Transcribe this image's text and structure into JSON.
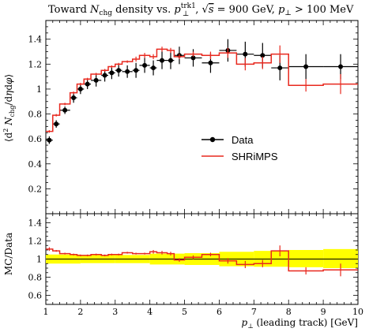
{
  "chart_data": [
    {
      "type": "line",
      "title": "Toward N_chg density vs. p_⊥^trk1, √s = 900 GeV, p_⊥ > 100 MeV",
      "ylabel": "⟨d² N_chg / dη dφ⟩",
      "xlabel": "",
      "xlim": [
        1,
        10
      ],
      "ylim": [
        0,
        1.55
      ],
      "yticks": [
        0.2,
        0.4,
        0.6,
        0.8,
        1.0,
        1.2,
        1.4
      ],
      "ytick_labels": [
        "0.2",
        "0.4",
        "0.6",
        "0.8",
        "1",
        "1.2",
        "1.4"
      ],
      "legend_position": "right",
      "series": [
        {
          "name": "Data",
          "kind": "points",
          "color": "#000000",
          "points": [
            {
              "x": 1.1,
              "xlo": 1.0,
              "xhi": 1.2,
              "y": 0.59,
              "err": 0.03
            },
            {
              "x": 1.3,
              "xlo": 1.2,
              "xhi": 1.4,
              "y": 0.72,
              "err": 0.03
            },
            {
              "x": 1.55,
              "xlo": 1.4,
              "xhi": 1.7,
              "y": 0.83,
              "err": 0.03
            },
            {
              "x": 1.8,
              "xlo": 1.7,
              "xhi": 1.9,
              "y": 0.93,
              "err": 0.04
            },
            {
              "x": 2.0,
              "xlo": 1.9,
              "xhi": 2.1,
              "y": 1.0,
              "err": 0.04
            },
            {
              "x": 2.2,
              "xlo": 2.1,
              "xhi": 2.3,
              "y": 1.04,
              "err": 0.04
            },
            {
              "x": 2.45,
              "xlo": 2.3,
              "xhi": 2.6,
              "y": 1.07,
              "err": 0.05
            },
            {
              "x": 2.7,
              "xlo": 2.6,
              "xhi": 2.8,
              "y": 1.11,
              "err": 0.05
            },
            {
              "x": 2.9,
              "xlo": 2.8,
              "xhi": 3.0,
              "y": 1.13,
              "err": 0.05
            },
            {
              "x": 3.1,
              "xlo": 3.0,
              "xhi": 3.2,
              "y": 1.15,
              "err": 0.05
            },
            {
              "x": 3.35,
              "xlo": 3.2,
              "xhi": 3.5,
              "y": 1.14,
              "err": 0.05
            },
            {
              "x": 3.6,
              "xlo": 3.5,
              "xhi": 3.7,
              "y": 1.15,
              "err": 0.06
            },
            {
              "x": 3.85,
              "xlo": 3.7,
              "xhi": 4.0,
              "y": 1.19,
              "err": 0.06
            },
            {
              "x": 4.1,
              "xlo": 4.0,
              "xhi": 4.2,
              "y": 1.17,
              "err": 0.06
            },
            {
              "x": 4.35,
              "xlo": 4.2,
              "xhi": 4.5,
              "y": 1.23,
              "err": 0.07
            },
            {
              "x": 4.6,
              "xlo": 4.5,
              "xhi": 4.7,
              "y": 1.23,
              "err": 0.07
            },
            {
              "x": 4.85,
              "xlo": 4.7,
              "xhi": 5.0,
              "y": 1.27,
              "err": 0.07
            },
            {
              "x": 5.25,
              "xlo": 5.0,
              "xhi": 5.5,
              "y": 1.25,
              "err": 0.07
            },
            {
              "x": 5.75,
              "xlo": 5.5,
              "xhi": 6.0,
              "y": 1.21,
              "err": 0.08
            },
            {
              "x": 6.25,
              "xlo": 6.0,
              "xhi": 6.5,
              "y": 1.31,
              "err": 0.09
            },
            {
              "x": 6.75,
              "xlo": 6.5,
              "xhi": 7.0,
              "y": 1.28,
              "err": 0.1
            },
            {
              "x": 7.25,
              "xlo": 7.0,
              "xhi": 7.5,
              "y": 1.27,
              "err": 0.1
            },
            {
              "x": 7.75,
              "xlo": 7.5,
              "xhi": 8.0,
              "y": 1.17,
              "err": 0.1
            },
            {
              "x": 8.5,
              "xlo": 8.0,
              "xhi": 9.0,
              "y": 1.18,
              "err": 0.1
            },
            {
              "x": 9.5,
              "xlo": 9.0,
              "xhi": 10.0,
              "y": 1.18,
              "err": 0.1
            }
          ]
        },
        {
          "name": "SHRiMPS",
          "kind": "histogram",
          "color": "#e8281e",
          "bins": [
            {
              "xlo": 1.0,
              "xhi": 1.2,
              "y": 0.66,
              "err": 0.01
            },
            {
              "xlo": 1.2,
              "xhi": 1.4,
              "y": 0.79,
              "err": 0.01
            },
            {
              "xlo": 1.4,
              "xhi": 1.7,
              "y": 0.88,
              "err": 0.01
            },
            {
              "xlo": 1.7,
              "xhi": 1.9,
              "y": 0.97,
              "err": 0.01
            },
            {
              "xlo": 1.9,
              "xhi": 2.1,
              "y": 1.04,
              "err": 0.01
            },
            {
              "xlo": 2.1,
              "xhi": 2.3,
              "y": 1.08,
              "err": 0.01
            },
            {
              "xlo": 2.3,
              "xhi": 2.6,
              "y": 1.12,
              "err": 0.01
            },
            {
              "xlo": 2.6,
              "xhi": 2.8,
              "y": 1.15,
              "err": 0.01
            },
            {
              "xlo": 2.8,
              "xhi": 3.0,
              "y": 1.18,
              "err": 0.01
            },
            {
              "xlo": 3.0,
              "xhi": 3.2,
              "y": 1.2,
              "err": 0.01
            },
            {
              "xlo": 3.2,
              "xhi": 3.5,
              "y": 1.22,
              "err": 0.01
            },
            {
              "xlo": 3.5,
              "xhi": 3.7,
              "y": 1.24,
              "err": 0.02
            },
            {
              "xlo": 3.7,
              "xhi": 4.0,
              "y": 1.27,
              "err": 0.02
            },
            {
              "xlo": 4.0,
              "xhi": 4.2,
              "y": 1.26,
              "err": 0.02
            },
            {
              "xlo": 4.2,
              "xhi": 4.5,
              "y": 1.32,
              "err": 0.02
            },
            {
              "xlo": 4.5,
              "xhi": 4.7,
              "y": 1.31,
              "err": 0.02
            },
            {
              "xlo": 4.7,
              "xhi": 5.0,
              "y": 1.26,
              "err": 0.02
            },
            {
              "xlo": 5.0,
              "xhi": 5.5,
              "y": 1.28,
              "err": 0.02
            },
            {
              "xlo": 5.5,
              "xhi": 6.0,
              "y": 1.27,
              "err": 0.03
            },
            {
              "xlo": 6.0,
              "xhi": 6.5,
              "y": 1.29,
              "err": 0.04
            },
            {
              "xlo": 6.5,
              "xhi": 7.0,
              "y": 1.2,
              "err": 0.05
            },
            {
              "xlo": 7.0,
              "xhi": 7.5,
              "y": 1.21,
              "err": 0.05
            },
            {
              "xlo": 7.5,
              "xhi": 8.0,
              "y": 1.28,
              "err": 0.07
            },
            {
              "xlo": 8.0,
              "xhi": 9.0,
              "y": 1.03,
              "err": 0.05
            },
            {
              "xlo": 9.0,
              "xhi": 10.0,
              "y": 1.04,
              "err": 0.08
            }
          ]
        }
      ]
    },
    {
      "type": "line",
      "title": "",
      "ylabel": "MC/Data",
      "xlabel": "p_⊥ (leading track) [GeV]",
      "xlim": [
        1,
        10
      ],
      "ylim": [
        0.5,
        1.5
      ],
      "xticks": [
        1,
        2,
        3,
        4,
        5,
        6,
        7,
        8,
        9,
        10
      ],
      "xtick_labels": [
        "1",
        "2",
        "3",
        "4",
        "5",
        "6",
        "7",
        "8",
        "9",
        "10"
      ],
      "yticks": [
        0.6,
        0.8,
        1.0,
        1.2,
        1.4
      ],
      "ytick_labels": [
        "0.6",
        "0.8",
        "1",
        "1.2",
        "1.4"
      ],
      "reference_line": 1.0,
      "band_color": "#ffff00",
      "band": [
        {
          "xlo": 1.0,
          "xhi": 2.0,
          "lo": 0.95,
          "hi": 1.05
        },
        {
          "xlo": 2.0,
          "xhi": 3.0,
          "lo": 0.955,
          "hi": 1.045
        },
        {
          "xlo": 3.0,
          "xhi": 4.0,
          "lo": 0.955,
          "hi": 1.045
        },
        {
          "xlo": 4.0,
          "xhi": 5.0,
          "lo": 0.94,
          "hi": 1.06
        },
        {
          "xlo": 5.0,
          "xhi": 6.0,
          "lo": 0.935,
          "hi": 1.065
        },
        {
          "xlo": 6.0,
          "xhi": 7.0,
          "lo": 0.92,
          "hi": 1.08
        },
        {
          "xlo": 7.0,
          "xhi": 8.0,
          "lo": 0.915,
          "hi": 1.09
        },
        {
          "xlo": 8.0,
          "xhi": 9.0,
          "lo": 0.91,
          "hi": 1.1
        },
        {
          "xlo": 9.0,
          "xhi": 10.0,
          "lo": 0.9,
          "hi": 1.11
        }
      ],
      "series": [
        {
          "name": "SHRiMPS",
          "kind": "histogram",
          "color": "#e8281e",
          "bins": [
            {
              "xlo": 1.0,
              "xhi": 1.2,
              "y": 1.11,
              "err": 0.02
            },
            {
              "xlo": 1.2,
              "xhi": 1.4,
              "y": 1.09,
              "err": 0.01
            },
            {
              "xlo": 1.4,
              "xhi": 1.7,
              "y": 1.06,
              "err": 0.01
            },
            {
              "xlo": 1.7,
              "xhi": 1.9,
              "y": 1.05,
              "err": 0.01
            },
            {
              "xlo": 1.9,
              "xhi": 2.1,
              "y": 1.04,
              "err": 0.01
            },
            {
              "xlo": 2.1,
              "xhi": 2.3,
              "y": 1.04,
              "err": 0.01
            },
            {
              "xlo": 2.3,
              "xhi": 2.6,
              "y": 1.05,
              "err": 0.01
            },
            {
              "xlo": 2.6,
              "xhi": 2.8,
              "y": 1.04,
              "err": 0.01
            },
            {
              "xlo": 2.8,
              "xhi": 3.0,
              "y": 1.05,
              "err": 0.01
            },
            {
              "xlo": 3.0,
              "xhi": 3.2,
              "y": 1.05,
              "err": 0.01
            },
            {
              "xlo": 3.2,
              "xhi": 3.5,
              "y": 1.07,
              "err": 0.01
            },
            {
              "xlo": 3.5,
              "xhi": 3.7,
              "y": 1.06,
              "err": 0.01
            },
            {
              "xlo": 3.7,
              "xhi": 4.0,
              "y": 1.06,
              "err": 0.01
            },
            {
              "xlo": 4.0,
              "xhi": 4.2,
              "y": 1.08,
              "err": 0.02
            },
            {
              "xlo": 4.2,
              "xhi": 4.5,
              "y": 1.07,
              "err": 0.02
            },
            {
              "xlo": 4.5,
              "xhi": 4.7,
              "y": 1.06,
              "err": 0.02
            },
            {
              "xlo": 4.7,
              "xhi": 5.0,
              "y": 0.99,
              "err": 0.02
            },
            {
              "xlo": 5.0,
              "xhi": 5.5,
              "y": 1.02,
              "err": 0.02
            },
            {
              "xlo": 5.5,
              "xhi": 6.0,
              "y": 1.05,
              "err": 0.02
            },
            {
              "xlo": 6.0,
              "xhi": 6.5,
              "y": 0.98,
              "err": 0.03
            },
            {
              "xlo": 6.5,
              "xhi": 7.0,
              "y": 0.94,
              "err": 0.04
            },
            {
              "xlo": 7.0,
              "xhi": 7.5,
              "y": 0.95,
              "err": 0.04
            },
            {
              "xlo": 7.5,
              "xhi": 8.0,
              "y": 1.09,
              "err": 0.06
            },
            {
              "xlo": 8.0,
              "xhi": 9.0,
              "y": 0.87,
              "err": 0.04
            },
            {
              "xlo": 9.0,
              "xhi": 10.0,
              "y": 0.88,
              "err": 0.07
            }
          ]
        }
      ]
    }
  ]
}
